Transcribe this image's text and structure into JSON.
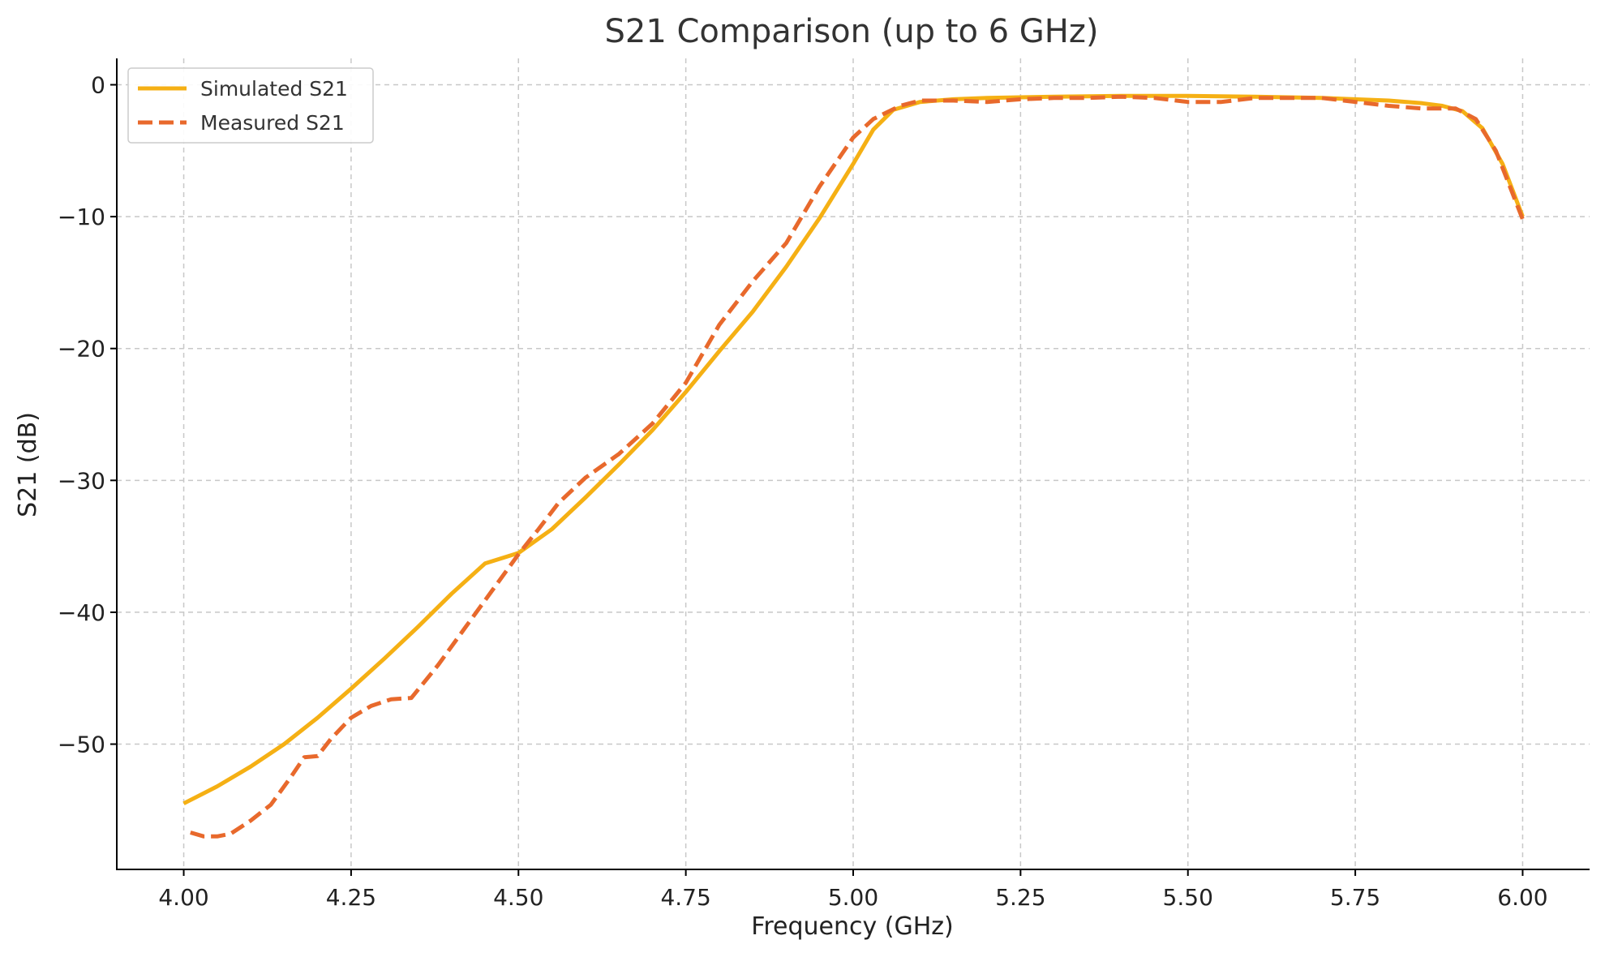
{
  "chart_data": {
    "type": "line",
    "title": "S21 Comparison (up to 6 GHz)",
    "xlabel": "Frequency (GHz)",
    "ylabel": "S21 (dB)",
    "xlim": [
      3.9,
      6.1
    ],
    "ylim": [
      -59.5,
      2
    ],
    "xticks": [
      4.0,
      4.25,
      4.5,
      4.75,
      5.0,
      5.25,
      5.5,
      5.75,
      6.0
    ],
    "xtick_labels": [
      "4.00",
      "4.25",
      "4.50",
      "4.75",
      "5.00",
      "5.25",
      "5.50",
      "5.75",
      "6.00"
    ],
    "yticks": [
      0,
      -10,
      -20,
      -30,
      -40,
      -50
    ],
    "ytick_labels": [
      "0",
      "−10",
      "−20",
      "−30",
      "−40",
      "−50"
    ],
    "grid": true,
    "legend_position": "top-left",
    "series": [
      {
        "name": "Simulated S21",
        "color": "#F5B014",
        "style": "solid",
        "x": [
          4.0,
          4.05,
          4.1,
          4.15,
          4.2,
          4.25,
          4.3,
          4.35,
          4.4,
          4.45,
          4.5,
          4.55,
          4.6,
          4.65,
          4.7,
          4.75,
          4.8,
          4.85,
          4.9,
          4.95,
          5.0,
          5.03,
          5.06,
          5.1,
          5.15,
          5.2,
          5.3,
          5.4,
          5.5,
          5.6,
          5.7,
          5.8,
          5.85,
          5.88,
          5.91,
          5.94,
          5.97,
          6.0
        ],
        "y": [
          -54.5,
          -53.2,
          -51.7,
          -50.0,
          -48.0,
          -45.8,
          -43.5,
          -41.1,
          -38.6,
          -36.3,
          -35.5,
          -33.7,
          -31.3,
          -28.8,
          -26.2,
          -23.3,
          -20.2,
          -17.2,
          -13.8,
          -10.1,
          -6.0,
          -3.4,
          -1.9,
          -1.3,
          -1.1,
          -1.0,
          -0.9,
          -0.85,
          -0.85,
          -0.9,
          -1.0,
          -1.2,
          -1.4,
          -1.6,
          -2.0,
          -3.3,
          -6.0,
          -10.0
        ]
      },
      {
        "name": "Measured S21",
        "color": "#E8692C",
        "style": "dashed",
        "x": [
          4.01,
          4.03,
          4.05,
          4.07,
          4.1,
          4.13,
          4.16,
          4.18,
          4.2,
          4.22,
          4.25,
          4.28,
          4.31,
          4.34,
          4.38,
          4.42,
          4.46,
          4.5,
          4.53,
          4.56,
          4.6,
          4.65,
          4.7,
          4.75,
          4.8,
          4.85,
          4.9,
          4.95,
          5.0,
          5.03,
          5.07,
          5.1,
          5.15,
          5.2,
          5.25,
          5.3,
          5.35,
          5.4,
          5.45,
          5.5,
          5.55,
          5.6,
          5.65,
          5.7,
          5.75,
          5.8,
          5.85,
          5.9,
          5.93,
          5.96,
          6.0
        ],
        "y": [
          -56.7,
          -57.0,
          -57.0,
          -56.8,
          -55.8,
          -54.6,
          -52.5,
          -51.0,
          -50.9,
          -49.6,
          -48.0,
          -47.1,
          -46.6,
          -46.5,
          -44.0,
          -41.2,
          -38.4,
          -35.6,
          -33.7,
          -31.7,
          -29.8,
          -28.0,
          -25.7,
          -22.6,
          -18.2,
          -14.9,
          -12.0,
          -7.7,
          -4.0,
          -2.6,
          -1.6,
          -1.2,
          -1.2,
          -1.3,
          -1.1,
          -1.0,
          -1.0,
          -0.9,
          -1.0,
          -1.3,
          -1.3,
          -1.0,
          -1.0,
          -1.0,
          -1.3,
          -1.6,
          -1.8,
          -1.8,
          -2.6,
          -5.0,
          -10.2
        ]
      }
    ]
  }
}
